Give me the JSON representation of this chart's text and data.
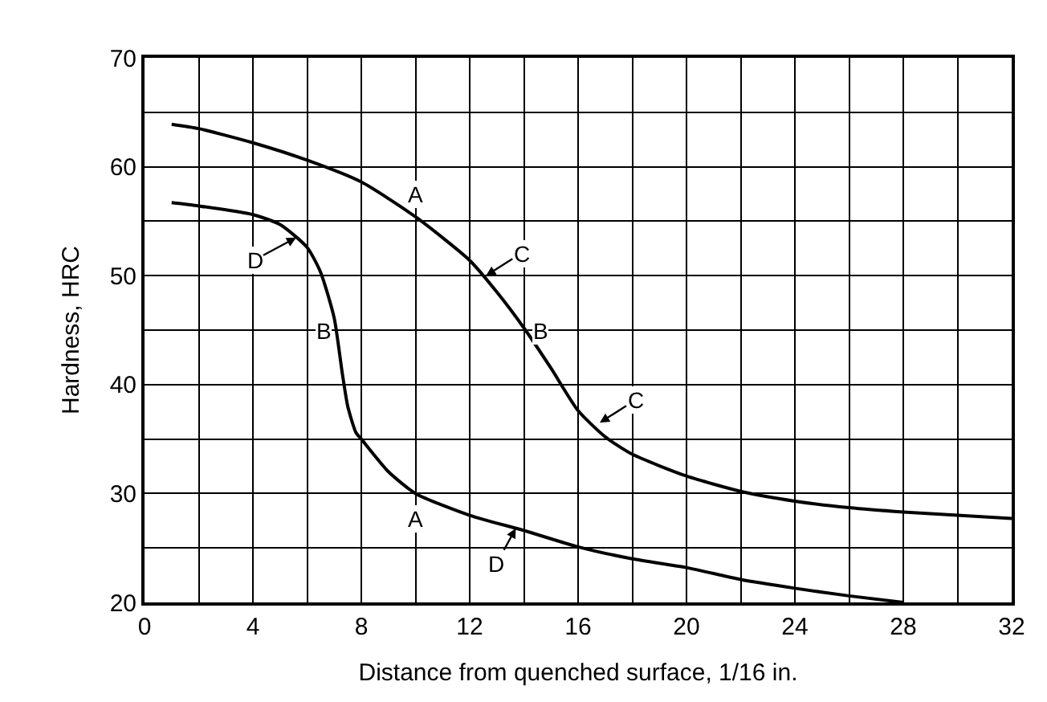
{
  "chart_data": {
    "type": "line",
    "xlabel": "Distance from quenched surface, 1/16 in.",
    "ylabel": "Hardness, HRC",
    "xlim": [
      0,
      32
    ],
    "ylim": [
      20,
      70
    ],
    "xticks": [
      0,
      {
        "value": 2,
        "label": null
      },
      4,
      {
        "value": 6,
        "label": null
      },
      8,
      {
        "value": 10,
        "label": null
      },
      12,
      {
        "value": 14,
        "label": null
      },
      16,
      {
        "value": 18,
        "label": null
      },
      20,
      {
        "value": 22,
        "label": null
      },
      24,
      {
        "value": 26,
        "label": null
      },
      28,
      {
        "value": 30,
        "label": null
      },
      32
    ],
    "yticks": [
      20,
      {
        "value": 25,
        "label": null
      },
      30,
      {
        "value": 35,
        "label": null
      },
      40,
      {
        "value": 45,
        "label": null
      },
      50,
      {
        "value": 55,
        "label": null
      },
      60,
      {
        "value": 65,
        "label": null
      },
      70
    ],
    "grid": true,
    "marker": "none",
    "line_style": "solid",
    "series": [
      {
        "color": "#000000",
        "x": [
          1,
          2,
          4,
          6,
          8,
          10,
          12,
          13,
          14,
          15,
          16,
          17,
          18,
          20,
          22,
          24,
          26,
          28,
          30,
          32
        ],
        "values": [
          63.9,
          63.5,
          62.2,
          60.6,
          58.6,
          55.4,
          51.4,
          48.5,
          45.2,
          41.5,
          37.6,
          35.2,
          33.6,
          31.6,
          30.2,
          29.3,
          28.7,
          28.3,
          28.0,
          27.7
        ]
      },
      {
        "color": "#000000",
        "x": [
          1,
          2,
          4,
          5,
          6,
          6.5,
          7,
          7.3,
          7.5,
          7.8,
          8,
          9,
          10,
          12,
          14,
          16,
          18,
          20,
          22,
          24,
          26,
          28
        ],
        "values": [
          56.7,
          56.4,
          55.6,
          54.7,
          52.6,
          50.3,
          46.1,
          41,
          38,
          35.6,
          35,
          32,
          30,
          28,
          26.6,
          25.1,
          24,
          23.2,
          22.1,
          21.3,
          20.6,
          20
        ]
      }
    ],
    "annotations": [
      {
        "text": "A",
        "x": 10,
        "y": 55.4
      },
      {
        "text": "A",
        "x": 10,
        "y": 30
      },
      {
        "text": "B",
        "x": 7.2,
        "y": 45
      },
      {
        "text": "B",
        "x": 14,
        "y": 45
      },
      {
        "text": "C",
        "x": 12.6,
        "y": 50
      },
      {
        "text": "C",
        "x": 16.8,
        "y": 36.5
      },
      {
        "text": "D",
        "x": 5.6,
        "y": 53.5
      },
      {
        "text": "D",
        "x": 13.7,
        "y": 26.8
      }
    ]
  }
}
